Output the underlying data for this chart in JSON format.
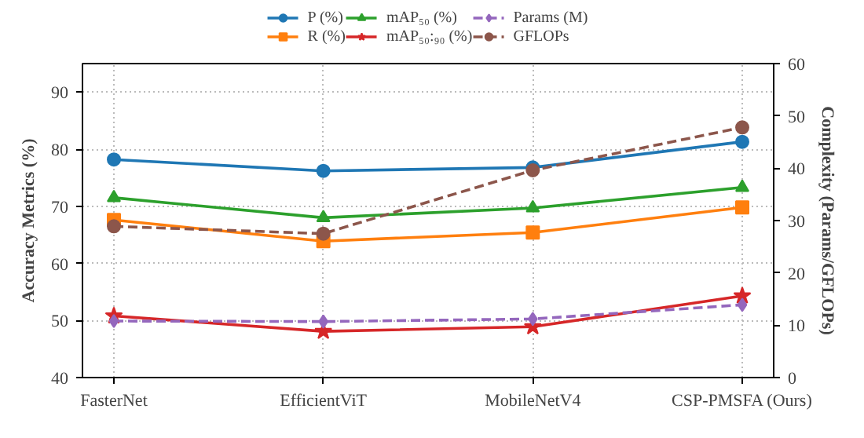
{
  "chart_data": {
    "type": "line",
    "categories": [
      "FasterNet",
      "EfficientViT",
      "MobileNetV4",
      "CSP-PMSFA (Ours)"
    ],
    "ylabel": "Accuracy Metrics (%)",
    "y2label": "Complexity (Params/GFLOPs)",
    "ylim": [
      40,
      95
    ],
    "yticks": [
      40,
      50,
      60,
      70,
      80,
      90
    ],
    "y2lim": [
      0,
      60
    ],
    "y2ticks": [
      0,
      10,
      20,
      30,
      40,
      50,
      60
    ],
    "grid": true,
    "legend": "top",
    "series": [
      {
        "name": "P (%)",
        "color": "#1f77b4",
        "marker": "circle",
        "line_style": "solid",
        "values": [
          78.2,
          76.2,
          76.8,
          81.3
        ]
      },
      {
        "name": "R (%)",
        "color": "#ff7f0e",
        "marker": "square",
        "line_style": "solid",
        "values": [
          67.6,
          63.9,
          65.4,
          69.8
        ]
      },
      {
        "name": "mAP₅₀ (%)",
        "color": "#2ca02c",
        "marker": "triangle",
        "line_style": "solid",
        "values": [
          71.5,
          68.0,
          69.7,
          73.3
        ]
      },
      {
        "name": "mAP₅₀:₉₀ (%)",
        "color": "#d62728",
        "marker": "star",
        "line_style": "solid",
        "values": [
          50.8,
          48.1,
          48.9,
          54.3
        ]
      },
      {
        "name": "Params (M)",
        "color": "#9467bd",
        "marker": "diamond",
        "line_style": "dashed",
        "axis": "y2",
        "values": [
          10.8,
          10.7,
          11.2,
          13.9
        ]
      },
      {
        "name": "GFLOPs",
        "color": "#8c564b",
        "marker": "circle",
        "line_style": "dashed",
        "axis": "y2",
        "values": [
          28.9,
          27.5,
          39.6,
          47.8
        ]
      }
    ]
  }
}
